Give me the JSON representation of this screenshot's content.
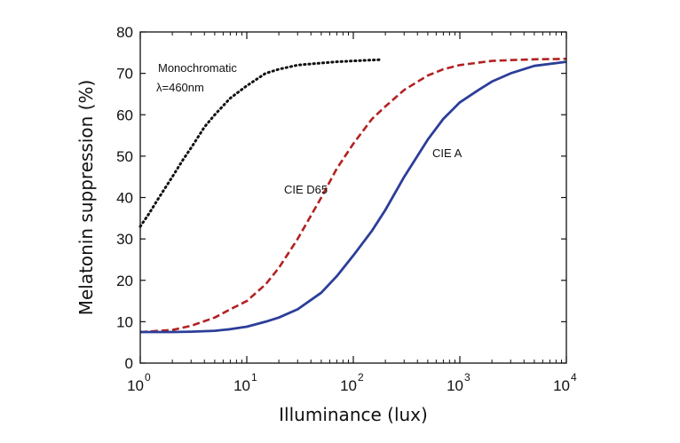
{
  "chart_data": {
    "type": "line",
    "title": "",
    "xlabel": "Illuminance (lux)",
    "ylabel": "Melatonin suppression (%)",
    "xscale": "log",
    "xlim": [
      1,
      10000
    ],
    "ylim": [
      0,
      80
    ],
    "x_ticks": [
      {
        "value": 1,
        "base": "10",
        "exp": "0"
      },
      {
        "value": 10,
        "base": "10",
        "exp": "1"
      },
      {
        "value": 100,
        "base": "10",
        "exp": "2"
      },
      {
        "value": 1000,
        "base": "10",
        "exp": "3"
      },
      {
        "value": 10000,
        "base": "10",
        "exp": "4"
      }
    ],
    "y_ticks": [
      "0",
      "10",
      "20",
      "30",
      "40",
      "50",
      "60",
      "70",
      "80"
    ],
    "grid": false,
    "series": [
      {
        "label": "Monochromatic",
        "label_line2": "λ=460nm",
        "color": "#111111",
        "style": "dotted",
        "x": [
          1,
          1.2,
          1.5,
          2,
          2.5,
          3,
          4,
          5,
          7,
          10,
          15,
          20,
          30,
          50,
          70,
          100,
          180
        ],
        "y": [
          33,
          36,
          40,
          45,
          49,
          52,
          57,
          60,
          64,
          67,
          70,
          71,
          72,
          72.5,
          72.8,
          73,
          73.3
        ]
      },
      {
        "label": "CIE D65",
        "color": "#b22222",
        "style": "dashed",
        "x": [
          1,
          2,
          3,
          5,
          7,
          10,
          15,
          20,
          30,
          50,
          70,
          100,
          150,
          200,
          300,
          500,
          700,
          1000,
          2000,
          3000,
          5000,
          10000
        ],
        "y": [
          7.5,
          8,
          9,
          11,
          13,
          15,
          19,
          23,
          30,
          40,
          47,
          53,
          59,
          62,
          66,
          69.5,
          71,
          72,
          73,
          73.2,
          73.4,
          73.5
        ],
        "annotation_x": 60,
        "annotation_y": 48
      },
      {
        "label": "CIE A",
        "color": "#2c3e99",
        "style": "solid",
        "x": [
          1,
          2,
          3,
          5,
          7,
          10,
          15,
          20,
          30,
          50,
          70,
          100,
          150,
          200,
          300,
          500,
          700,
          1000,
          1500,
          2000,
          3000,
          5000,
          10000
        ],
        "y": [
          7.5,
          7.5,
          7.6,
          7.8,
          8.2,
          8.8,
          10,
          11,
          13,
          17,
          21,
          26,
          32,
          37,
          45,
          54,
          59,
          63,
          66,
          68,
          70,
          71.8,
          72.8
        ],
        "annotation_x": 700,
        "annotation_y": 56
      }
    ]
  }
}
